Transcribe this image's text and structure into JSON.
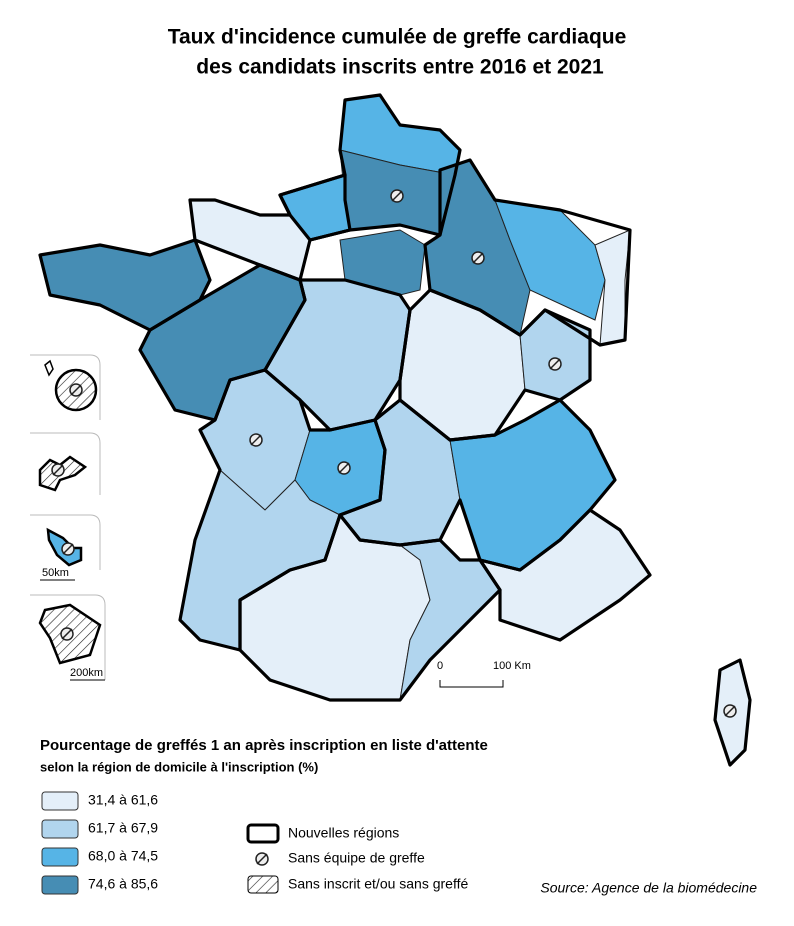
{
  "title": [
    "Taux d'incidence cumulée de greffe cardiaque",
    "des candidats inscrits entre 2016 et 2021"
  ],
  "legend": {
    "title": "Pourcentage de greffés 1 an après inscription en liste d'attente",
    "subtitle": "selon la région de domicile à l'inscription (%)",
    "classes": [
      {
        "label": "31,4 à 61,6",
        "color": "#e4eff9"
      },
      {
        "label": "61,7 à 67,9",
        "color": "#b1d5ee"
      },
      {
        "label": "68,0 à 74,5",
        "color": "#56b4e6"
      },
      {
        "label": "74,6 à 85,6",
        "color": "#468db4"
      }
    ],
    "symbols": [
      "Nouvelles régions",
      "Sans équipe de greffe",
      "Sans inscrit et/ou sans greffé"
    ]
  },
  "scale": {
    "start": "0",
    "end": "100 Km"
  },
  "insets": {
    "scale_1": "50km",
    "scale_2": "200km"
  },
  "source": "Source: Agence de la biomédecine"
}
